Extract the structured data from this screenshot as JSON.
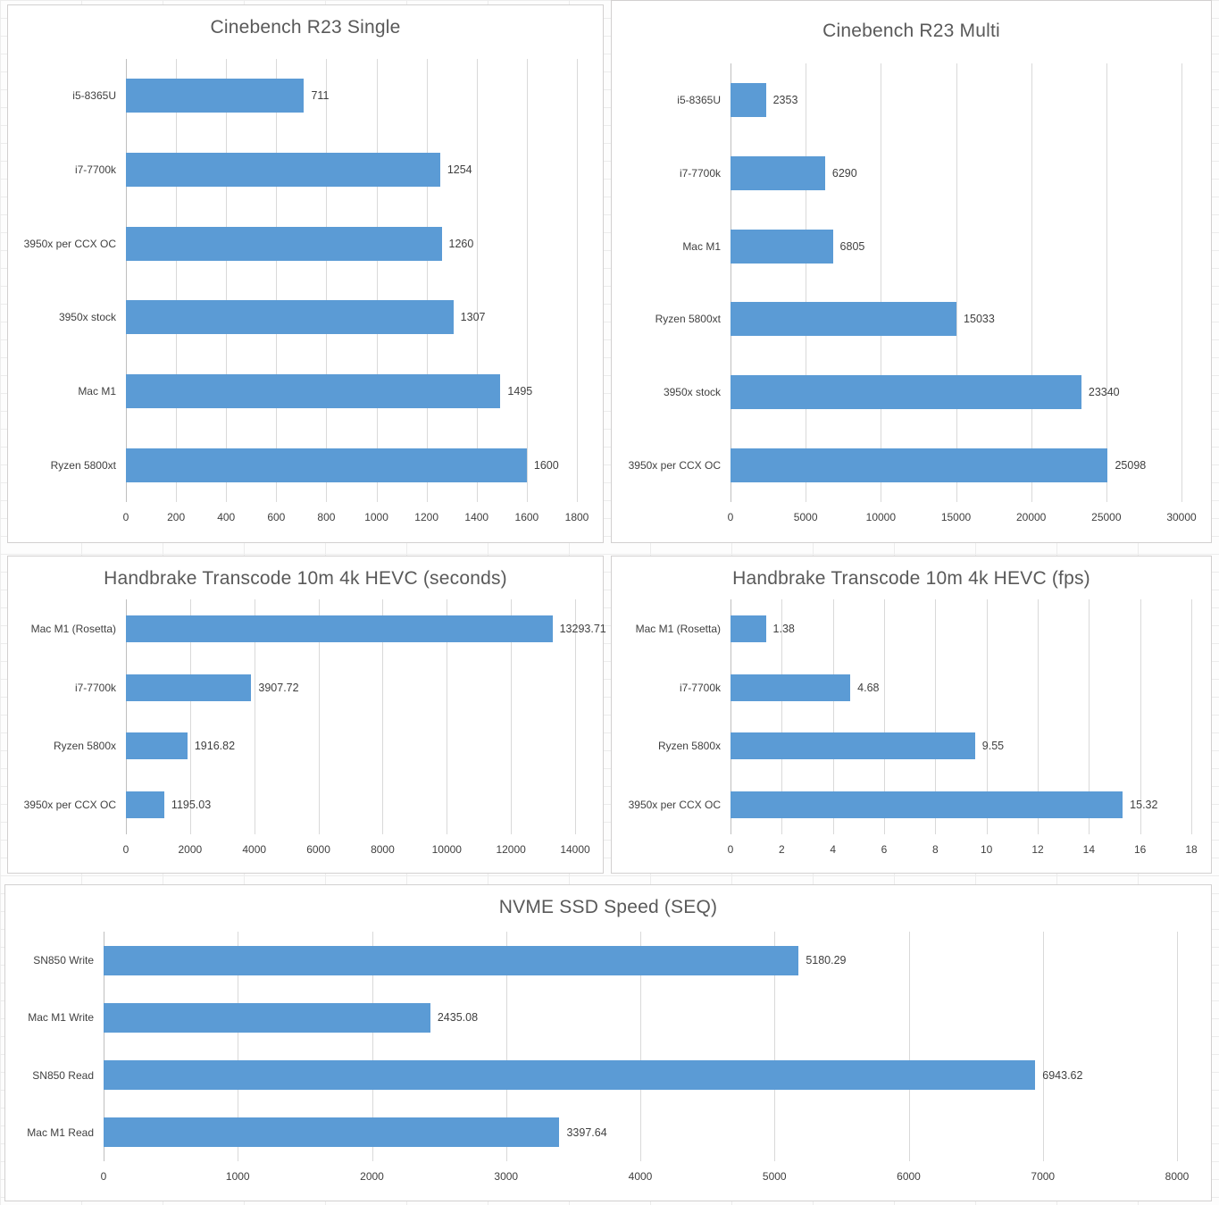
{
  "colors": {
    "bar": "#5b9bd5",
    "gridline": "#d9d9d9",
    "axis_line": "#bfbfbf",
    "panel_border": "#d2d0d0",
    "title_text": "#595959",
    "label_text": "#404040"
  },
  "chart_data": [
    {
      "type": "bar",
      "orientation": "horizontal",
      "title": "Cinebench R23 Single",
      "categories": [
        "i5-8365U",
        "i7-7700k",
        "3950x per CCX OC",
        "3950x stock",
        "Mac M1",
        "Ryzen 5800xt"
      ],
      "values": [
        711,
        1254,
        1260,
        1307,
        1495,
        1600
      ],
      "value_labels": [
        "711",
        "1254",
        "1260",
        "1307",
        "1495",
        "1600"
      ],
      "xlabel": "",
      "ylabel": "",
      "xlim": [
        0,
        1800
      ],
      "xticks": [
        0,
        200,
        400,
        600,
        800,
        1000,
        1200,
        1400,
        1600,
        1800
      ],
      "grid": true,
      "legend": null
    },
    {
      "type": "bar",
      "orientation": "horizontal",
      "title": "Cinebench R23 Multi",
      "categories": [
        "i5-8365U",
        "i7-7700k",
        "Mac M1",
        "Ryzen 5800xt",
        "3950x stock",
        "3950x per CCX OC"
      ],
      "values": [
        2353,
        6290,
        6805,
        15033,
        23340,
        25098
      ],
      "value_labels": [
        "2353",
        "6290",
        "6805",
        "15033",
        "23340",
        "25098"
      ],
      "xlabel": "",
      "ylabel": "",
      "xlim": [
        0,
        30000
      ],
      "xticks": [
        0,
        5000,
        10000,
        15000,
        20000,
        25000,
        30000
      ],
      "grid": true,
      "legend": null
    },
    {
      "type": "bar",
      "orientation": "horizontal",
      "title": "Handbrake Transcode 10m 4k HEVC (seconds)",
      "categories": [
        "Mac M1 (Rosetta)",
        "i7-7700k",
        "Ryzen 5800x",
        "3950x per CCX OC"
      ],
      "values": [
        13293.71,
        3907.72,
        1916.82,
        1195.03
      ],
      "value_labels": [
        "13293.71",
        "3907.72",
        "1916.82",
        "1195.03"
      ],
      "xlabel": "",
      "ylabel": "",
      "xlim": [
        0,
        14000
      ],
      "xticks": [
        0,
        2000,
        4000,
        6000,
        8000,
        10000,
        12000,
        14000
      ],
      "grid": true,
      "legend": null
    },
    {
      "type": "bar",
      "orientation": "horizontal",
      "title": "Handbrake Transcode 10m 4k HEVC (fps)",
      "categories": [
        "Mac M1 (Rosetta)",
        "i7-7700k",
        "Ryzen 5800x",
        "3950x per CCX OC"
      ],
      "values": [
        1.38,
        4.68,
        9.55,
        15.32
      ],
      "value_labels": [
        "1.38",
        "4.68",
        "9.55",
        "15.32"
      ],
      "xlabel": "",
      "ylabel": "",
      "xlim": [
        0,
        18
      ],
      "xticks": [
        0,
        2,
        4,
        6,
        8,
        10,
        12,
        14,
        16,
        18
      ],
      "grid": true,
      "legend": null
    },
    {
      "type": "bar",
      "orientation": "horizontal",
      "title": "NVME SSD Speed (SEQ)",
      "categories": [
        "SN850 Write",
        "Mac M1 Write",
        "SN850 Read",
        "Mac M1 Read"
      ],
      "values": [
        5180.29,
        2435.08,
        6943.62,
        3397.64
      ],
      "value_labels": [
        "5180.29",
        "2435.08",
        "6943.62",
        "3397.64"
      ],
      "xlabel": "",
      "ylabel": "",
      "xlim": [
        0,
        8000
      ],
      "xticks": [
        0,
        1000,
        2000,
        3000,
        4000,
        5000,
        6000,
        7000,
        8000
      ],
      "grid": true,
      "legend": null
    }
  ]
}
